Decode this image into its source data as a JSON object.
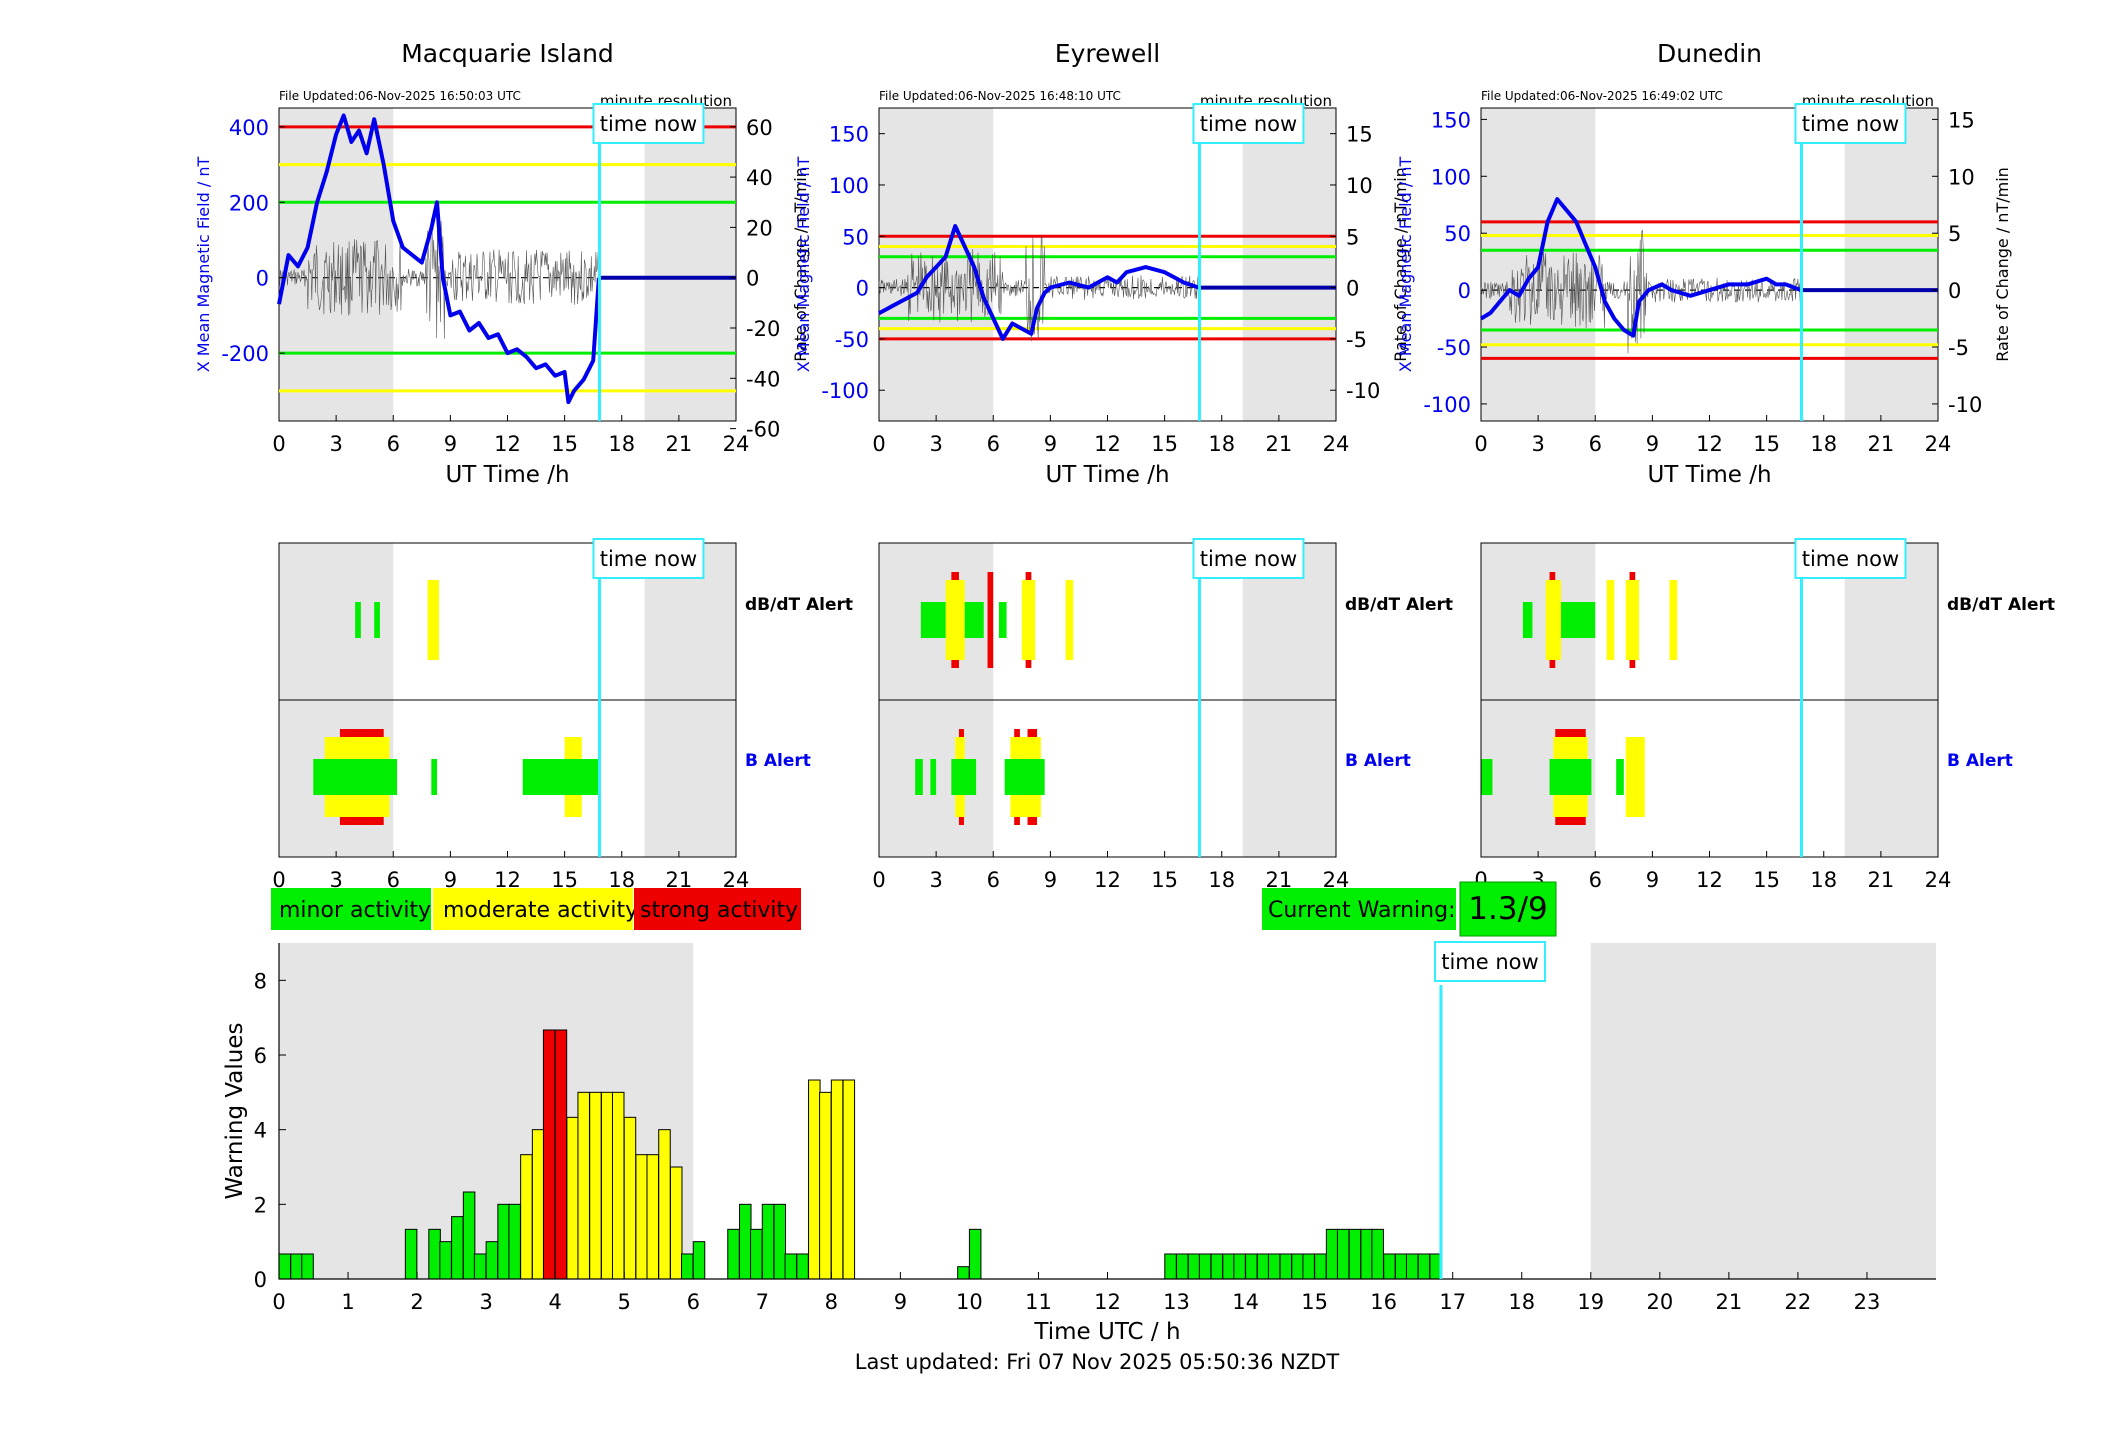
{
  "colors": {
    "minor": "#00ee00",
    "moderate": "#ffff00",
    "strong": "#ee0000",
    "nowline": "#33eeff",
    "field": "#0000ee",
    "shade": "#e5e5e5"
  },
  "stations": [
    {
      "title": "Macquarie Island",
      "file_updated": "File Updated:06-Nov-2025 16:50:03 UTC",
      "resolution": "minute resolution",
      "time_now_label": "time now",
      "ylabel_left": "X Mean Magnetic Field / nT",
      "ylabel_right": "Rate of Change / nT/min",
      "xlabel": "UT Time /h",
      "left_ylim": [
        -380,
        450
      ],
      "left_ticks": [
        "-200",
        "0",
        "200",
        "400"
      ],
      "left_tick_values": [
        -200,
        0,
        200,
        400
      ],
      "right_ticks": [
        "-60",
        "-40",
        "-20",
        "0",
        "20",
        "40",
        "60"
      ],
      "right_tick_values": [
        -60,
        -40,
        -20,
        0,
        20,
        40,
        60
      ],
      "right_scale": 6.67,
      "thresholds": [
        {
          "level": 400,
          "color": "red"
        },
        {
          "level": 300,
          "color": "yellow"
        },
        {
          "level": 200,
          "color": "green"
        },
        {
          "level": -200,
          "color": "green"
        },
        {
          "level": -300,
          "color": "yellow"
        }
      ],
      "time_now": 16.83,
      "night_shade": [
        [
          0,
          6
        ],
        [
          19.2,
          24
        ]
      ],
      "field_series": [
        [
          0,
          -70
        ],
        [
          0.5,
          60
        ],
        [
          1,
          30
        ],
        [
          1.5,
          80
        ],
        [
          2,
          200
        ],
        [
          2.5,
          280
        ],
        [
          3,
          380
        ],
        [
          3.4,
          430
        ],
        [
          3.8,
          360
        ],
        [
          4.2,
          390
        ],
        [
          4.6,
          330
        ],
        [
          5,
          420
        ],
        [
          5.5,
          300
        ],
        [
          6,
          150
        ],
        [
          6.5,
          80
        ],
        [
          7,
          60
        ],
        [
          7.5,
          40
        ],
        [
          8,
          130
        ],
        [
          8.3,
          200
        ],
        [
          8.6,
          0
        ],
        [
          9,
          -100
        ],
        [
          9.5,
          -90
        ],
        [
          10,
          -140
        ],
        [
          10.5,
          -120
        ],
        [
          11,
          -160
        ],
        [
          11.5,
          -150
        ],
        [
          12,
          -200
        ],
        [
          12.5,
          -190
        ],
        [
          13,
          -210
        ],
        [
          13.5,
          -240
        ],
        [
          14,
          -230
        ],
        [
          14.5,
          -260
        ],
        [
          15,
          -250
        ],
        [
          15.2,
          -330
        ],
        [
          15.5,
          -300
        ],
        [
          16,
          -270
        ],
        [
          16.5,
          -220
        ],
        [
          16.8,
          0
        ]
      ],
      "dbdt_segments": [
        [
          4.0,
          4.3,
          "minor"
        ],
        [
          5.0,
          5.3,
          "minor"
        ],
        [
          7.8,
          8.4,
          "moderate"
        ]
      ],
      "b_segments": [
        [
          1.8,
          6.2,
          "minor"
        ],
        [
          2.4,
          5.8,
          "moderate"
        ],
        [
          3.2,
          5.5,
          "strong"
        ],
        [
          8.0,
          8.3,
          "minor"
        ],
        [
          12.8,
          16.8,
          "minor"
        ],
        [
          15.0,
          15.9,
          "moderate"
        ]
      ]
    },
    {
      "title": "Eyrewell",
      "file_updated": "File Updated:06-Nov-2025 16:48:10 UTC",
      "resolution": "minute resolution",
      "time_now_label": "time now",
      "ylabel_left": "X Mean Magnetic Field / nT",
      "ylabel_right": "Rate of Change / nT/min",
      "xlabel": "UT Time /h",
      "left_ylim": [
        -130,
        175
      ],
      "left_ticks": [
        "-100",
        "-50",
        "0",
        "50",
        "100",
        "150"
      ],
      "left_tick_values": [
        -100,
        -50,
        0,
        50,
        100,
        150
      ],
      "right_ticks": [
        "-10",
        "-5",
        "0",
        "5",
        "10",
        "15"
      ],
      "right_tick_values": [
        -10,
        -5,
        0,
        5,
        10,
        15
      ],
      "right_scale": 10,
      "thresholds": [
        {
          "level": 50,
          "color": "red"
        },
        {
          "level": 40,
          "color": "yellow"
        },
        {
          "level": 30,
          "color": "green"
        },
        {
          "level": -30,
          "color": "green"
        },
        {
          "level": -40,
          "color": "yellow"
        },
        {
          "level": -50,
          "color": "red"
        }
      ],
      "time_now": 16.83,
      "night_shade": [
        [
          0,
          6
        ],
        [
          19.1,
          24
        ]
      ],
      "field_series": [
        [
          0,
          -25
        ],
        [
          0.5,
          -20
        ],
        [
          1,
          -15
        ],
        [
          1.5,
          -10
        ],
        [
          2,
          -5
        ],
        [
          2.5,
          10
        ],
        [
          3,
          20
        ],
        [
          3.5,
          30
        ],
        [
          4,
          60
        ],
        [
          4.5,
          40
        ],
        [
          5,
          20
        ],
        [
          5.5,
          -10
        ],
        [
          6,
          -30
        ],
        [
          6.5,
          -50
        ],
        [
          7,
          -35
        ],
        [
          7.5,
          -40
        ],
        [
          8,
          -45
        ],
        [
          8.3,
          -20
        ],
        [
          8.7,
          -5
        ],
        [
          9,
          0
        ],
        [
          10,
          5
        ],
        [
          11,
          0
        ],
        [
          12,
          10
        ],
        [
          12.5,
          5
        ],
        [
          13,
          15
        ],
        [
          14,
          20
        ],
        [
          15,
          15
        ],
        [
          15.5,
          10
        ],
        [
          16,
          5
        ],
        [
          16.8,
          0
        ]
      ],
      "dbdt_segments": [
        [
          2.2,
          3.5,
          "minor"
        ],
        [
          3.5,
          4.5,
          "moderate"
        ],
        [
          3.8,
          4.2,
          "strong"
        ],
        [
          4.5,
          5.5,
          "minor"
        ],
        [
          5.7,
          6.0,
          "strong"
        ],
        [
          6.3,
          6.7,
          "minor"
        ],
        [
          7.5,
          8.2,
          "moderate"
        ],
        [
          7.7,
          8.0,
          "strong"
        ],
        [
          9.8,
          10.2,
          "moderate"
        ]
      ],
      "b_segments": [
        [
          1.9,
          2.3,
          "minor"
        ],
        [
          2.7,
          3.0,
          "minor"
        ],
        [
          3.8,
          5.1,
          "minor"
        ],
        [
          4.0,
          4.5,
          "moderate"
        ],
        [
          4.2,
          4.4,
          "strong"
        ],
        [
          6.6,
          8.7,
          "minor"
        ],
        [
          6.9,
          8.5,
          "moderate"
        ],
        [
          7.1,
          7.4,
          "strong"
        ],
        [
          7.8,
          8.3,
          "strong"
        ]
      ]
    },
    {
      "title": "Dunedin",
      "file_updated": "File Updated:06-Nov-2025 16:49:02 UTC",
      "resolution": "minute resolution",
      "time_now_label": "time now",
      "ylabel_left": "X Mean Magnetic Field / nT",
      "ylabel_right": "Rate of Change / nT/min",
      "xlabel": "UT Time /h",
      "left_ylim": [
        -115,
        160
      ],
      "left_ticks": [
        "-100",
        "-50",
        "0",
        "50",
        "100",
        "150"
      ],
      "left_tick_values": [
        -100,
        -50,
        0,
        50,
        100,
        150
      ],
      "right_ticks": [
        "-10",
        "-5",
        "0",
        "5",
        "10",
        "15"
      ],
      "right_tick_values": [
        -10,
        -5,
        0,
        5,
        10,
        15
      ],
      "right_scale": 10,
      "thresholds": [
        {
          "level": 60,
          "color": "red"
        },
        {
          "level": 48,
          "color": "yellow"
        },
        {
          "level": 35,
          "color": "green"
        },
        {
          "level": -35,
          "color": "green"
        },
        {
          "level": -48,
          "color": "yellow"
        },
        {
          "level": -60,
          "color": "red"
        }
      ],
      "time_now": 16.83,
      "night_shade": [
        [
          0,
          6
        ],
        [
          19.1,
          24
        ]
      ],
      "field_series": [
        [
          0,
          -25
        ],
        [
          0.5,
          -20
        ],
        [
          1,
          -10
        ],
        [
          1.5,
          0
        ],
        [
          2,
          -5
        ],
        [
          2.5,
          10
        ],
        [
          3,
          20
        ],
        [
          3.5,
          60
        ],
        [
          4,
          80
        ],
        [
          4.5,
          70
        ],
        [
          5,
          60
        ],
        [
          5.5,
          40
        ],
        [
          6,
          20
        ],
        [
          6.5,
          -10
        ],
        [
          7,
          -25
        ],
        [
          7.5,
          -35
        ],
        [
          8,
          -40
        ],
        [
          8.3,
          -10
        ],
        [
          8.8,
          0
        ],
        [
          9.5,
          5
        ],
        [
          10,
          0
        ],
        [
          11,
          -5
        ],
        [
          12,
          0
        ],
        [
          13,
          5
        ],
        [
          14,
          5
        ],
        [
          15,
          10
        ],
        [
          15.5,
          5
        ],
        [
          16,
          5
        ],
        [
          16.8,
          0
        ]
      ],
      "dbdt_segments": [
        [
          2.2,
          2.7,
          "minor"
        ],
        [
          3.4,
          4.2,
          "moderate"
        ],
        [
          3.6,
          3.9,
          "strong"
        ],
        [
          4.2,
          6.0,
          "minor"
        ],
        [
          6.6,
          7.0,
          "moderate"
        ],
        [
          7.6,
          8.3,
          "moderate"
        ],
        [
          7.8,
          8.1,
          "strong"
        ],
        [
          9.9,
          10.3,
          "moderate"
        ]
      ],
      "b_segments": [
        [
          0.0,
          0.6,
          "minor"
        ],
        [
          3.6,
          5.8,
          "minor"
        ],
        [
          3.8,
          5.6,
          "moderate"
        ],
        [
          3.9,
          5.5,
          "strong"
        ],
        [
          7.1,
          7.5,
          "minor"
        ],
        [
          7.6,
          8.6,
          "moderate"
        ]
      ]
    }
  ],
  "alert_labels": {
    "dbdt": "dB/dT Alert",
    "b": "B Alert"
  },
  "alert_xticks": [
    "0",
    "3",
    "6",
    "9",
    "12",
    "15",
    "18",
    "21",
    "24"
  ],
  "legend": {
    "minor": "minor activity",
    "moderate": "moderate activity",
    "strong": "strong activity"
  },
  "current_warning": {
    "label": "Current Warning:",
    "value": "1.3/9"
  },
  "chart_data": {
    "type": "bar",
    "title": "",
    "xlabel": "Time UTC / h",
    "ylabel": "Warning Values",
    "xlim": [
      0,
      24
    ],
    "ylim": [
      0,
      9
    ],
    "yticks": [
      "0",
      "2",
      "4",
      "6",
      "8"
    ],
    "xticks": [
      "0",
      "1",
      "2",
      "3",
      "4",
      "5",
      "6",
      "7",
      "8",
      "9",
      "10",
      "11",
      "12",
      "13",
      "14",
      "15",
      "16",
      "17",
      "18",
      "19",
      "20",
      "21",
      "22",
      "23"
    ],
    "bar_width_h": 0.1667,
    "time_now": 16.83,
    "time_now_label": "time now",
    "night_shade": [
      [
        0,
        6
      ],
      [
        19,
        24
      ]
    ],
    "bars": [
      {
        "x": 0.0,
        "value": 0.67,
        "level": "minor"
      },
      {
        "x": 0.17,
        "value": 0.67,
        "level": "minor"
      },
      {
        "x": 0.33,
        "value": 0.67,
        "level": "minor"
      },
      {
        "x": 1.83,
        "value": 1.33,
        "level": "minor"
      },
      {
        "x": 2.17,
        "value": 1.33,
        "level": "minor"
      },
      {
        "x": 2.33,
        "value": 1.0,
        "level": "minor"
      },
      {
        "x": 2.5,
        "value": 1.67,
        "level": "minor"
      },
      {
        "x": 2.67,
        "value": 2.33,
        "level": "minor"
      },
      {
        "x": 2.83,
        "value": 0.67,
        "level": "minor"
      },
      {
        "x": 3.0,
        "value": 1.0,
        "level": "minor"
      },
      {
        "x": 3.17,
        "value": 2.0,
        "level": "minor"
      },
      {
        "x": 3.33,
        "value": 2.0,
        "level": "minor"
      },
      {
        "x": 3.5,
        "value": 3.33,
        "level": "moderate"
      },
      {
        "x": 3.67,
        "value": 4.0,
        "level": "moderate"
      },
      {
        "x": 3.83,
        "value": 6.67,
        "level": "strong"
      },
      {
        "x": 4.0,
        "value": 6.67,
        "level": "strong"
      },
      {
        "x": 4.17,
        "value": 4.33,
        "level": "moderate"
      },
      {
        "x": 4.33,
        "value": 5.0,
        "level": "moderate"
      },
      {
        "x": 4.5,
        "value": 5.0,
        "level": "moderate"
      },
      {
        "x": 4.67,
        "value": 5.0,
        "level": "moderate"
      },
      {
        "x": 4.83,
        "value": 5.0,
        "level": "moderate"
      },
      {
        "x": 5.0,
        "value": 4.33,
        "level": "moderate"
      },
      {
        "x": 5.17,
        "value": 3.33,
        "level": "moderate"
      },
      {
        "x": 5.33,
        "value": 3.33,
        "level": "moderate"
      },
      {
        "x": 5.5,
        "value": 4.0,
        "level": "moderate"
      },
      {
        "x": 5.67,
        "value": 3.0,
        "level": "moderate"
      },
      {
        "x": 5.83,
        "value": 0.67,
        "level": "minor"
      },
      {
        "x": 6.0,
        "value": 1.0,
        "level": "minor"
      },
      {
        "x": 6.5,
        "value": 1.33,
        "level": "minor"
      },
      {
        "x": 6.67,
        "value": 2.0,
        "level": "minor"
      },
      {
        "x": 6.83,
        "value": 1.33,
        "level": "minor"
      },
      {
        "x": 7.0,
        "value": 2.0,
        "level": "minor"
      },
      {
        "x": 7.17,
        "value": 2.0,
        "level": "minor"
      },
      {
        "x": 7.33,
        "value": 0.67,
        "level": "minor"
      },
      {
        "x": 7.5,
        "value": 0.67,
        "level": "minor"
      },
      {
        "x": 7.67,
        "value": 5.33,
        "level": "moderate"
      },
      {
        "x": 7.83,
        "value": 5.0,
        "level": "moderate"
      },
      {
        "x": 8.0,
        "value": 5.33,
        "level": "moderate"
      },
      {
        "x": 8.17,
        "value": 5.33,
        "level": "moderate"
      },
      {
        "x": 9.83,
        "value": 0.33,
        "level": "minor"
      },
      {
        "x": 10.0,
        "value": 1.33,
        "level": "minor"
      },
      {
        "x": 12.83,
        "value": 0.67,
        "level": "minor"
      },
      {
        "x": 13.0,
        "value": 0.67,
        "level": "minor"
      },
      {
        "x": 13.17,
        "value": 0.67,
        "level": "minor"
      },
      {
        "x": 13.33,
        "value": 0.67,
        "level": "minor"
      },
      {
        "x": 13.5,
        "value": 0.67,
        "level": "minor"
      },
      {
        "x": 13.67,
        "value": 0.67,
        "level": "minor"
      },
      {
        "x": 13.83,
        "value": 0.67,
        "level": "minor"
      },
      {
        "x": 14.0,
        "value": 0.67,
        "level": "minor"
      },
      {
        "x": 14.17,
        "value": 0.67,
        "level": "minor"
      },
      {
        "x": 14.33,
        "value": 0.67,
        "level": "minor"
      },
      {
        "x": 14.5,
        "value": 0.67,
        "level": "minor"
      },
      {
        "x": 14.67,
        "value": 0.67,
        "level": "minor"
      },
      {
        "x": 14.83,
        "value": 0.67,
        "level": "minor"
      },
      {
        "x": 15.0,
        "value": 0.67,
        "level": "minor"
      },
      {
        "x": 15.17,
        "value": 1.33,
        "level": "minor"
      },
      {
        "x": 15.33,
        "value": 1.33,
        "level": "minor"
      },
      {
        "x": 15.5,
        "value": 1.33,
        "level": "minor"
      },
      {
        "x": 15.67,
        "value": 1.33,
        "level": "minor"
      },
      {
        "x": 15.83,
        "value": 1.33,
        "level": "minor"
      },
      {
        "x": 16.0,
        "value": 0.67,
        "level": "minor"
      },
      {
        "x": 16.17,
        "value": 0.67,
        "level": "minor"
      },
      {
        "x": 16.33,
        "value": 0.67,
        "level": "minor"
      },
      {
        "x": 16.5,
        "value": 0.67,
        "level": "minor"
      },
      {
        "x": 16.67,
        "value": 0.67,
        "level": "minor"
      }
    ]
  },
  "footer": {
    "last_updated": "Last updated: Fri 07 Nov 2025 05:50:36 NZDT"
  }
}
